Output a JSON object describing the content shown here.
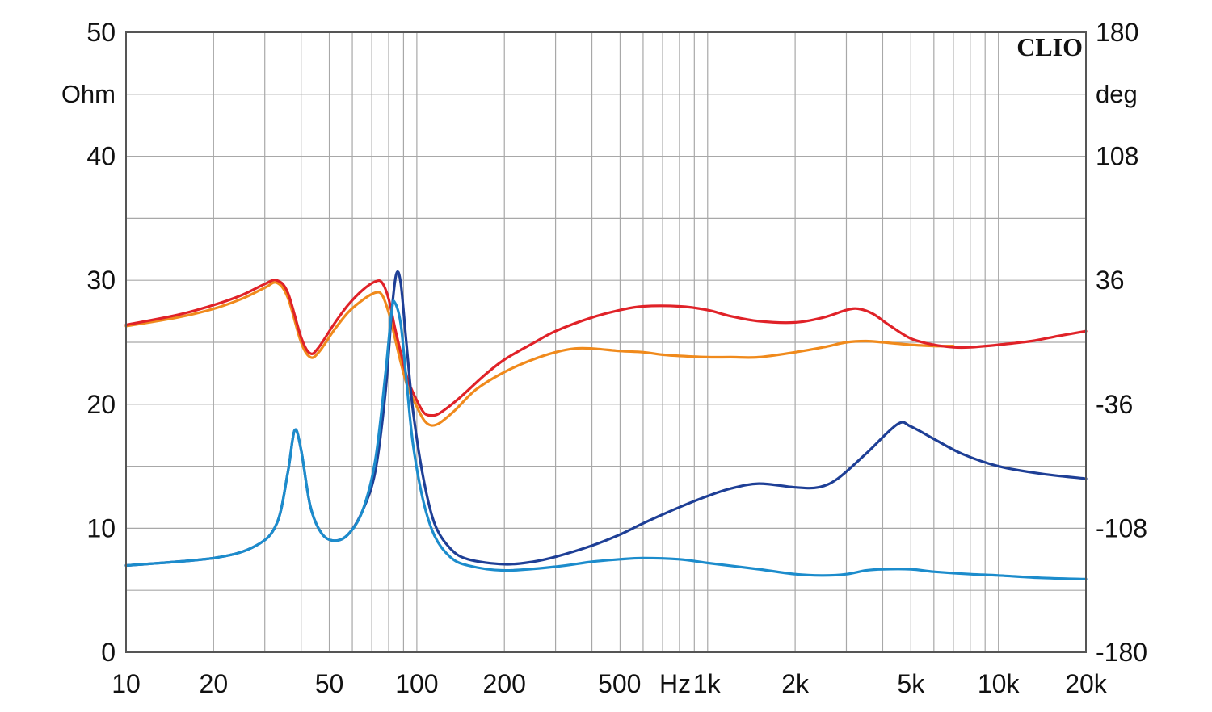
{
  "chart_data": {
    "type": "line",
    "brand": "CLIO",
    "x_scale": "log",
    "xlim": [
      10,
      20000
    ],
    "left_axis": {
      "unit": "Ohm",
      "ylim": [
        0,
        50
      ],
      "ticks": [
        0,
        10,
        20,
        30,
        40,
        50
      ]
    },
    "right_axis": {
      "unit": "deg",
      "ylim": [
        -180,
        180
      ],
      "ticks": [
        -180,
        -108,
        -36,
        36,
        108,
        180
      ]
    },
    "x_ticks": [
      {
        "value": 10,
        "label": "10"
      },
      {
        "value": 20,
        "label": "20"
      },
      {
        "value": 50,
        "label": "50"
      },
      {
        "value": 100,
        "label": "100"
      },
      {
        "value": 200,
        "label": "200"
      },
      {
        "value": 500,
        "label": "500"
      },
      {
        "value": 1000,
        "label": "1k"
      },
      {
        "value": 2000,
        "label": "2k"
      },
      {
        "value": 5000,
        "label": "5k"
      },
      {
        "value": 10000,
        "label": "10k"
      },
      {
        "value": 20000,
        "label": "20k"
      }
    ],
    "x_unit": "Hz",
    "grid": true,
    "series": [
      {
        "name": "orange",
        "color": "#f08a1c",
        "points": [
          [
            10,
            26.3
          ],
          [
            15,
            27
          ],
          [
            20,
            27.7
          ],
          [
            25,
            28.5
          ],
          [
            30,
            29.4
          ],
          [
            33,
            29.8
          ],
          [
            36,
            28.6
          ],
          [
            40,
            25
          ],
          [
            43,
            23.8
          ],
          [
            46,
            24.2
          ],
          [
            52,
            26
          ],
          [
            58,
            27.4
          ],
          [
            65,
            28.4
          ],
          [
            72,
            29
          ],
          [
            76,
            28.8
          ],
          [
            80,
            27.4
          ],
          [
            84,
            25.4
          ],
          [
            88,
            23.4
          ],
          [
            93,
            21.4
          ],
          [
            100,
            19.8
          ],
          [
            106,
            18.7
          ],
          [
            112,
            18.3
          ],
          [
            120,
            18.5
          ],
          [
            135,
            19.5
          ],
          [
            160,
            21.2
          ],
          [
            200,
            22.6
          ],
          [
            250,
            23.6
          ],
          [
            300,
            24.2
          ],
          [
            350,
            24.5
          ],
          [
            400,
            24.5
          ],
          [
            500,
            24.3
          ],
          [
            600,
            24.2
          ],
          [
            700,
            24
          ],
          [
            800,
            23.9
          ],
          [
            1000,
            23.8
          ],
          [
            1200,
            23.8
          ],
          [
            1500,
            23.8
          ],
          [
            2000,
            24.2
          ],
          [
            2500,
            24.6
          ],
          [
            3000,
            25
          ],
          [
            3500,
            25.1
          ],
          [
            4000,
            25
          ],
          [
            5000,
            24.8
          ],
          [
            6000,
            24.7
          ],
          [
            7000,
            24.7
          ]
        ]
      },
      {
        "name": "red",
        "color": "#e02228",
        "points": [
          [
            10,
            26.4
          ],
          [
            15,
            27.2
          ],
          [
            20,
            28
          ],
          [
            25,
            28.8
          ],
          [
            30,
            29.7
          ],
          [
            33,
            30
          ],
          [
            36,
            29
          ],
          [
            40,
            25.4
          ],
          [
            43,
            24.1
          ],
          [
            46,
            24.6
          ],
          [
            52,
            26.5
          ],
          [
            58,
            28
          ],
          [
            65,
            29.2
          ],
          [
            72,
            29.9
          ],
          [
            76,
            29.8
          ],
          [
            80,
            28.5
          ],
          [
            84,
            26.2
          ],
          [
            88,
            24.2
          ],
          [
            93,
            22
          ],
          [
            100,
            20.3
          ],
          [
            106,
            19.3
          ],
          [
            112,
            19.1
          ],
          [
            120,
            19.3
          ],
          [
            140,
            20.5
          ],
          [
            170,
            22.3
          ],
          [
            200,
            23.6
          ],
          [
            250,
            24.9
          ],
          [
            300,
            25.9
          ],
          [
            400,
            27
          ],
          [
            500,
            27.6
          ],
          [
            600,
            27.9
          ],
          [
            800,
            27.9
          ],
          [
            1000,
            27.6
          ],
          [
            1200,
            27.1
          ],
          [
            1500,
            26.7
          ],
          [
            2000,
            26.6
          ],
          [
            2500,
            27
          ],
          [
            3000,
            27.6
          ],
          [
            3300,
            27.7
          ],
          [
            3700,
            27.3
          ],
          [
            4200,
            26.4
          ],
          [
            5000,
            25.3
          ],
          [
            6000,
            24.8
          ],
          [
            7000,
            24.6
          ],
          [
            8000,
            24.6
          ],
          [
            10000,
            24.8
          ],
          [
            13000,
            25.1
          ],
          [
            16000,
            25.5
          ],
          [
            20000,
            25.9
          ]
        ]
      },
      {
        "name": "dark-blue",
        "color": "#1e3f96",
        "points": [
          [
            10,
            7
          ],
          [
            20,
            7.6
          ],
          [
            28,
            8.6
          ],
          [
            33,
            10.4
          ],
          [
            36,
            14.5
          ],
          [
            38,
            17.9
          ],
          [
            40,
            16.3
          ],
          [
            43,
            11.8
          ],
          [
            47,
            9.6
          ],
          [
            52,
            9
          ],
          [
            58,
            9.5
          ],
          [
            65,
            11.4
          ],
          [
            72,
            14.6
          ],
          [
            78,
            21
          ],
          [
            82,
            27.5
          ],
          [
            85,
            30.5
          ],
          [
            88,
            29.8
          ],
          [
            92,
            25
          ],
          [
            97,
            19.5
          ],
          [
            105,
            14.2
          ],
          [
            115,
            10.4
          ],
          [
            130,
            8.4
          ],
          [
            150,
            7.5
          ],
          [
            200,
            7.1
          ],
          [
            250,
            7.3
          ],
          [
            300,
            7.7
          ],
          [
            400,
            8.6
          ],
          [
            500,
            9.5
          ],
          [
            600,
            10.4
          ],
          [
            800,
            11.7
          ],
          [
            1000,
            12.6
          ],
          [
            1200,
            13.2
          ],
          [
            1500,
            13.6
          ],
          [
            2000,
            13.3
          ],
          [
            2400,
            13.3
          ],
          [
            2800,
            14
          ],
          [
            3500,
            16
          ],
          [
            4500,
            18.4
          ],
          [
            5000,
            18.2
          ],
          [
            6000,
            17.2
          ],
          [
            7500,
            16
          ],
          [
            10000,
            15
          ],
          [
            14000,
            14.4
          ],
          [
            20000,
            14
          ]
        ]
      },
      {
        "name": "light-blue",
        "color": "#1c8ccc",
        "points": [
          [
            10,
            7
          ],
          [
            20,
            7.6
          ],
          [
            28,
            8.6
          ],
          [
            33,
            10.4
          ],
          [
            36,
            14.5
          ],
          [
            38,
            17.9
          ],
          [
            40,
            16.3
          ],
          [
            43,
            11.8
          ],
          [
            47,
            9.6
          ],
          [
            52,
            9
          ],
          [
            58,
            9.5
          ],
          [
            65,
            11.4
          ],
          [
            72,
            15.5
          ],
          [
            78,
            22.5
          ],
          [
            82,
            27.6
          ],
          [
            84,
            28.2
          ],
          [
            88,
            26.5
          ],
          [
            92,
            22
          ],
          [
            97,
            16.8
          ],
          [
            105,
            12.3
          ],
          [
            115,
            9.4
          ],
          [
            130,
            7.7
          ],
          [
            150,
            7
          ],
          [
            200,
            6.6
          ],
          [
            300,
            6.9
          ],
          [
            400,
            7.3
          ],
          [
            500,
            7.5
          ],
          [
            600,
            7.6
          ],
          [
            800,
            7.5
          ],
          [
            1000,
            7.2
          ],
          [
            1500,
            6.7
          ],
          [
            2000,
            6.3
          ],
          [
            2500,
            6.2
          ],
          [
            3000,
            6.3
          ],
          [
            3500,
            6.6
          ],
          [
            4000,
            6.7
          ],
          [
            5000,
            6.7
          ],
          [
            6000,
            6.5
          ],
          [
            8000,
            6.3
          ],
          [
            10000,
            6.2
          ],
          [
            14000,
            6
          ],
          [
            20000,
            5.9
          ]
        ]
      }
    ]
  }
}
